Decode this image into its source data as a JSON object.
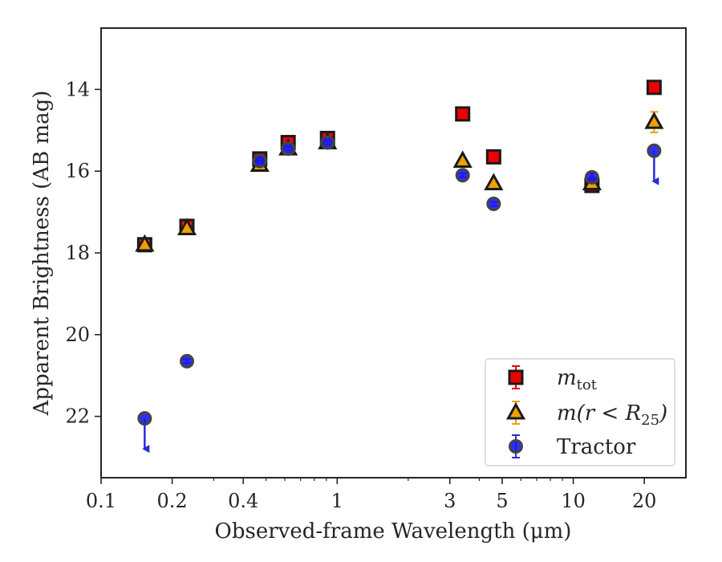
{
  "chart_data": {
    "type": "scatter",
    "xlabel": "Observed-frame Wavelength (μm)",
    "ylabel": "Apparent Brightness (AB mag)",
    "xscale": "log",
    "xlim": [
      0.1,
      30
    ],
    "ylim": [
      23.5,
      12.5
    ],
    "y_inverted": true,
    "xticks": [
      0.1,
      0.2,
      0.4,
      1,
      3,
      5,
      10,
      20
    ],
    "xtick_labels": [
      "0.1",
      "0.2",
      "0.4",
      "1",
      "3",
      "5",
      "10",
      "20"
    ],
    "yticks": [
      14,
      16,
      18,
      20,
      22
    ],
    "ytick_labels": [
      "14",
      "16",
      "18",
      "20",
      "22"
    ],
    "legend_position": "lower-right",
    "series": [
      {
        "name": "m_tot",
        "legend_main": "m",
        "legend_sub": "tot",
        "marker": "square",
        "color": "#ee0000",
        "edge_color": "#1a1a1a",
        "points": [
          {
            "x": 0.153,
            "y": 17.8,
            "err": 0.1
          },
          {
            "x": 0.231,
            "y": 17.35,
            "err": 0.1
          },
          {
            "x": 0.47,
            "y": 15.7,
            "err": 0.05
          },
          {
            "x": 0.62,
            "y": 15.3,
            "err": 0.05
          },
          {
            "x": 0.91,
            "y": 15.2,
            "err": 0.05
          },
          {
            "x": 3.4,
            "y": 14.6,
            "err": 0.05
          },
          {
            "x": 4.6,
            "y": 15.65,
            "err": 0.05
          },
          {
            "x": 12.0,
            "y": 16.35,
            "err": 0.05
          },
          {
            "x": 22.0,
            "y": 13.95,
            "err": 0.05
          }
        ]
      },
      {
        "name": "m(r < R25)",
        "legend_main": "m(r < R",
        "legend_sub": "25",
        "legend_tail": ")",
        "marker": "triangle",
        "color": "#f0a000",
        "edge_color": "#1a1a1a",
        "points": [
          {
            "x": 0.153,
            "y": 17.8,
            "err": 0.1
          },
          {
            "x": 0.231,
            "y": 17.4,
            "err": 0.1
          },
          {
            "x": 0.47,
            "y": 15.85,
            "err": 0.05
          },
          {
            "x": 0.62,
            "y": 15.45,
            "err": 0.05
          },
          {
            "x": 0.91,
            "y": 15.3,
            "err": 0.05
          },
          {
            "x": 3.4,
            "y": 15.75,
            "err": 0.05
          },
          {
            "x": 4.6,
            "y": 16.3,
            "err": 0.05
          },
          {
            "x": 12.0,
            "y": 16.3,
            "err": 0.1
          },
          {
            "x": 22.0,
            "y": 14.8,
            "err": 0.25
          }
        ]
      },
      {
        "name": "Tractor",
        "legend_main": "Tractor",
        "marker": "circle",
        "color": "#1a1aee",
        "edge_color": "#444444",
        "points": [
          {
            "x": 0.153,
            "y": 22.05,
            "upper_limit": true
          },
          {
            "x": 0.231,
            "y": 20.65,
            "err": 0.05
          },
          {
            "x": 0.47,
            "y": 15.75,
            "err": 0.05
          },
          {
            "x": 0.62,
            "y": 15.45,
            "err": 0.05
          },
          {
            "x": 0.91,
            "y": 15.3,
            "err": 0.05
          },
          {
            "x": 3.4,
            "y": 16.1,
            "err": 0.05
          },
          {
            "x": 4.6,
            "y": 16.8,
            "err": 0.05
          },
          {
            "x": 12.0,
            "y": 16.15,
            "err": 0.1
          },
          {
            "x": 22.0,
            "y": 15.5,
            "upper_limit": true
          }
        ]
      }
    ]
  }
}
